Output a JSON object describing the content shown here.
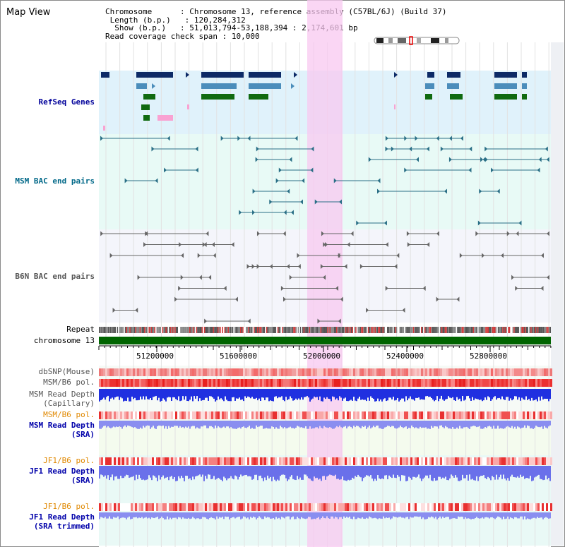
{
  "app": {
    "title": "Map View"
  },
  "header": {
    "chromosome_key": "Chromosome",
    "chromosome_value": "Chromosome 13, reference assembly (C57BL/6J) (Build 37)",
    "length_key": "Length (b.p.)",
    "length_value": "120,284,312",
    "show_key": "Show (b.p.)",
    "show_value": "51,013,794-53,188,394 : 2,174,601 bp",
    "coverage_key": "Read coverage check span",
    "coverage_value": "10,000"
  },
  "tracks": {
    "refseq": "RefSeq Genes",
    "msm_bac": "MSM BAC end pairs",
    "b6n_bac": "B6N BAC end pairs",
    "repeat": "Repeat",
    "chromosome": "chromosome 13",
    "dbsnp": "dbSNP(Mouse)",
    "msm_b6_pol": "MSM/B6 pol.",
    "msm_read_depth_1": "MSM Read Depth",
    "msm_read_depth_1b": "(Capillary)",
    "msm_b6_pol_2": "MSM/B6 pol.",
    "msm_read_depth_2": "MSM Read Depth",
    "msm_read_depth_2b": "(SRA)",
    "jf1_b6_pol": "JF1/B6 pol.",
    "jf1_read_depth": "JF1 Read Depth",
    "jf1_read_depth_b": "(SRA)",
    "jf1_b6_pol_2": "JF1/B6 pol.",
    "jf1_read_depth_2": "JF1 Read Depth",
    "jf1_read_depth_2b": "(SRA trimmed)"
  },
  "axis": {
    "ticks": [
      "51200000",
      "51600000",
      "52000000",
      "52400000",
      "52800000"
    ]
  },
  "colors": {
    "refseq_label": "#00009a",
    "msm_bac_label": "#006888",
    "b6n_bac_label": "#555555",
    "orange_label": "#e08800",
    "blue_label": "#0000aa",
    "highlight": "#f8c8f0",
    "chromosome_bar": "#006400"
  }
}
